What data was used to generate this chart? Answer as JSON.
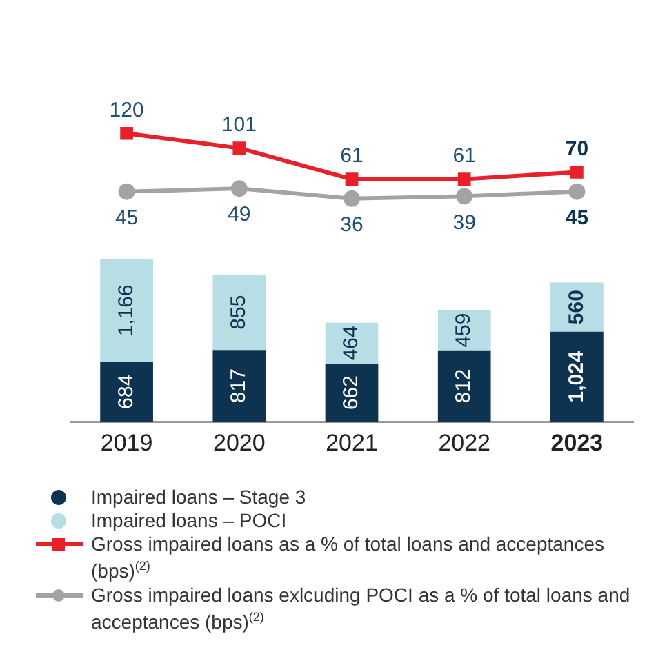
{
  "chart_data": [
    {
      "type": "line",
      "categories": [
        null,
        null,
        null,
        null,
        null
      ],
      "series": [
        {
          "name": "Gross impaired loans as a % of total loans and acceptances (bps)$^{(2)}$",
          "marker": "square",
          "color": "#e8202a",
          "values": [
            120,
            101,
            61,
            61,
            70
          ]
        },
        {
          "name": "Gross impaired loans exlcuding POCI as a % of total loans and acceptances (bps)$^{(2)}$",
          "marker": "circle",
          "color": "#a3a3a3",
          "values": [
            45,
            49,
            36,
            39,
            45
          ]
        }
      ],
      "data_labels": true,
      "tick_labels": false,
      "grid": false,
      "legend": "bottom"
    },
    {
      "type": "bar",
      "stacked": true,
      "categories": [
        "2019",
        "2020",
        "2021",
        "2022",
        "2023"
      ],
      "series": [
        {
          "name": "Impaired loans – Stage 3",
          "color": "#0d3350",
          "values": [
            684,
            817,
            662,
            812,
            1024
          ],
          "value_labels": [
            "684",
            "817",
            "662",
            "812",
            "1,024"
          ]
        },
        {
          "name": "Impaired loans – POCI",
          "color": "#b7dde5",
          "values": [
            1166,
            855,
            464,
            459,
            560
          ],
          "value_labels": [
            "1,166",
            "855",
            "464",
            "459",
            "560"
          ]
        }
      ],
      "data_labels": true,
      "tick_labels": "x",
      "grid": false,
      "legend": "bottom"
    }
  ]
}
